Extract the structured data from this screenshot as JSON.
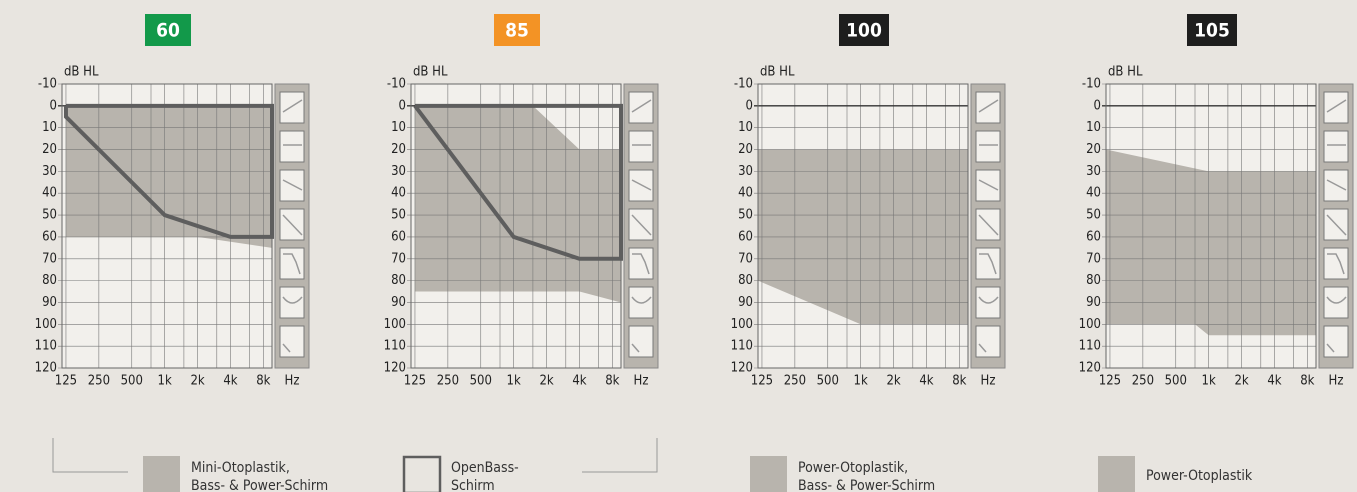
{
  "chart_data": [
    {
      "type": "area",
      "title": "60",
      "title_color": "#12994a",
      "ylabel": "dB HL",
      "xlabel": "Hz",
      "xscale": "log",
      "xlim": [
        115,
        9600
      ],
      "xticks": [
        125,
        250,
        500,
        {
          "value": 1000,
          "label": "1k"
        },
        {
          "value": 2000,
          "label": "2k"
        },
        {
          "value": 4000,
          "label": "4k"
        },
        {
          "value": 8000,
          "label": "8k"
        }
      ],
      "xminorticks": [
        750,
        1500,
        3000,
        6000
      ],
      "ylim": [
        -10,
        120
      ],
      "yticks": [
        -10,
        0,
        10,
        20,
        30,
        40,
        50,
        60,
        70,
        80,
        90,
        100,
        110,
        120
      ],
      "grid": true,
      "series": [
        {
          "kind": "polygon",
          "color": "#b8b4ad",
          "x": [
            125,
            9600,
            9600,
            2000,
            125
          ],
          "values": [
            0,
            0,
            65,
            60,
            60
          ]
        },
        {
          "kind": "outline",
          "color": "#5e5e5e",
          "x": [
            125,
            9600,
            9600,
            4000,
            1000,
            125,
            125
          ],
          "values": [
            0,
            0,
            60,
            60,
            50,
            5,
            0
          ]
        }
      ]
    },
    {
      "type": "area",
      "title": "85",
      "title_color": "#f39325",
      "ylabel": "dB HL",
      "xlabel": "Hz",
      "xscale": "log",
      "xlim": [
        115,
        9600
      ],
      "xticks": [
        125,
        250,
        500,
        {
          "value": 1000,
          "label": "1k"
        },
        {
          "value": 2000,
          "label": "2k"
        },
        {
          "value": 4000,
          "label": "4k"
        },
        {
          "value": 8000,
          "label": "8k"
        }
      ],
      "xminorticks": [
        750,
        1500,
        3000,
        6000
      ],
      "ylim": [
        -10,
        120
      ],
      "yticks": [
        -10,
        0,
        10,
        20,
        30,
        40,
        50,
        60,
        70,
        80,
        90,
        100,
        110,
        120
      ],
      "grid": true,
      "series": [
        {
          "kind": "polygon",
          "color": "#b8b4ad",
          "x": [
            125,
            1500,
            4000,
            9600,
            9600,
            4000,
            125
          ],
          "values": [
            0,
            0,
            20,
            20,
            90,
            85,
            85
          ]
        },
        {
          "kind": "outline",
          "color": "#5e5e5e",
          "x": [
            125,
            9600,
            9600,
            4000,
            1000,
            125
          ],
          "values": [
            0,
            0,
            70,
            70,
            60,
            0
          ]
        }
      ]
    },
    {
      "type": "area",
      "title": "100",
      "title_color": "#1e1e1e",
      "ylabel": "dB HL",
      "xlabel": "Hz",
      "xscale": "log",
      "xlim": [
        115,
        9600
      ],
      "xticks": [
        125,
        250,
        500,
        {
          "value": 1000,
          "label": "1k"
        },
        {
          "value": 2000,
          "label": "2k"
        },
        {
          "value": 4000,
          "label": "4k"
        },
        {
          "value": 8000,
          "label": "8k"
        }
      ],
      "xminorticks": [
        750,
        1500,
        3000,
        6000
      ],
      "ylim": [
        -10,
        120
      ],
      "yticks": [
        -10,
        0,
        10,
        20,
        30,
        40,
        50,
        60,
        70,
        80,
        90,
        100,
        110,
        120
      ],
      "grid": true,
      "series": [
        {
          "kind": "polygon",
          "color": "#b8b4ad",
          "x": [
            115,
            9600,
            9600,
            1000,
            115
          ],
          "values": [
            20,
            20,
            100,
            100,
            80
          ]
        }
      ]
    },
    {
      "type": "area",
      "title": "105",
      "title_color": "#1e1e1e",
      "ylabel": "dB HL",
      "xlabel": "Hz",
      "xscale": "log",
      "xlim": [
        115,
        9600
      ],
      "xticks": [
        125,
        250,
        500,
        {
          "value": 1000,
          "label": "1k"
        },
        {
          "value": 2000,
          "label": "2k"
        },
        {
          "value": 4000,
          "label": "4k"
        },
        {
          "value": 8000,
          "label": "8k"
        }
      ],
      "xminorticks": [
        750,
        1500,
        3000,
        6000
      ],
      "ylim": [
        -10,
        120
      ],
      "yticks": [
        -10,
        0,
        10,
        20,
        30,
        40,
        50,
        60,
        70,
        80,
        90,
        100,
        110,
        120
      ],
      "grid": true,
      "series": [
        {
          "kind": "polygon",
          "color": "#b8b4ad",
          "x": [
            115,
            1000,
            9600,
            9600,
            1000,
            750,
            115
          ],
          "values": [
            20,
            30,
            30,
            105,
            105,
            100,
            100
          ]
        }
      ]
    }
  ],
  "legend": [
    {
      "kind": "fill",
      "lines": [
        "Mini-Otoplastik,",
        "Bass- & Power-Schirm"
      ]
    },
    {
      "kind": "outline",
      "lines": [
        "OpenBass-",
        "Schirm"
      ]
    },
    {
      "kind": "fill",
      "lines": [
        "Power-Otoplastik,",
        "Bass- & Power-Schirm"
      ]
    },
    {
      "kind": "fill",
      "lines": [
        "Power-Otoplastik"
      ]
    }
  ]
}
